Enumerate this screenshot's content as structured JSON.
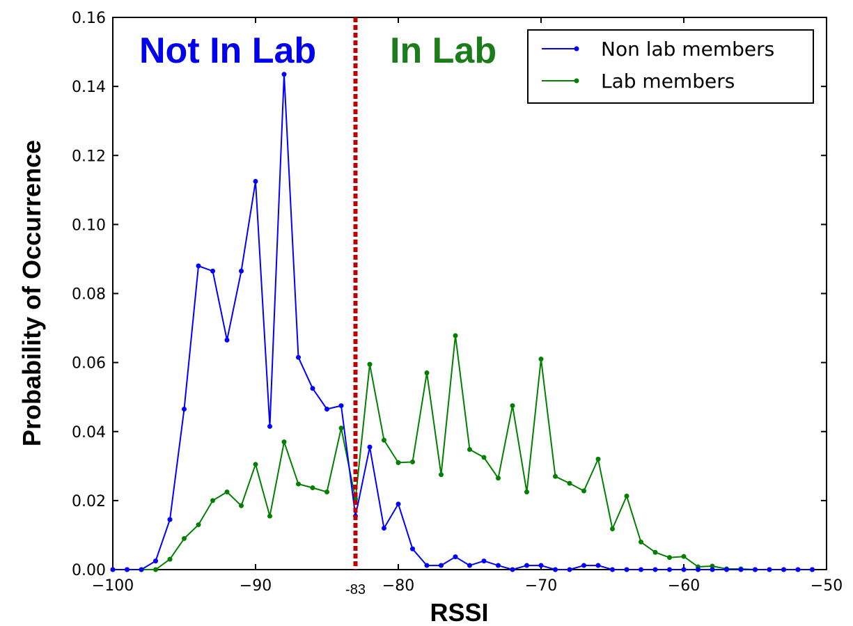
{
  "chart_data": {
    "type": "line",
    "xlabel": "RSSI",
    "ylabel": "Probability of Occurrence",
    "xlim": [
      -100,
      -50
    ],
    "ylim": [
      0,
      0.16
    ],
    "xticks": [
      -100,
      -90,
      -80,
      -70,
      -60,
      -50
    ],
    "xtick_labels": [
      "−100",
      "−90",
      "−80",
      "−70",
      "−60",
      "−50"
    ],
    "yticks": [
      0,
      0.02,
      0.04,
      0.06,
      0.08,
      0.1,
      0.12,
      0.14,
      0.16
    ],
    "ytick_labels": [
      "0.00",
      "0.02",
      "0.04",
      "0.06",
      "0.08",
      "0.10",
      "0.12",
      "0.14",
      "0.16"
    ],
    "grid": false,
    "legend_position": "top-right",
    "threshold": {
      "x": -83,
      "label": "-83",
      "color": "#c00000"
    },
    "annotations": [
      {
        "text": "Not In Lab",
        "color": "#0000ee"
      },
      {
        "text": "In Lab",
        "color": "#1a7d1a"
      }
    ],
    "x": [
      -100,
      -99,
      -98,
      -97,
      -96,
      -95,
      -94,
      -93,
      -92,
      -91,
      -90,
      -89,
      -88,
      -87,
      -86,
      -85,
      -84,
      -83,
      -82,
      -81,
      -80,
      -79,
      -78,
      -77,
      -76,
      -75,
      -74,
      -73,
      -72,
      -71,
      -70,
      -69,
      -68,
      -67,
      -66,
      -65,
      -64,
      -63,
      -62,
      -61,
      -60,
      -59,
      -58,
      -57,
      -56,
      -55,
      -54,
      -53,
      -52,
      -51
    ],
    "series": [
      {
        "name": "Non lab members",
        "color": "#0000ff",
        "values": [
          0,
          0,
          0,
          0.0025,
          0.0145,
          0.0465,
          0.088,
          0.0865,
          0.0665,
          0.0865,
          0.1125,
          0.0415,
          0.1435,
          0.0615,
          0.0525,
          0.0465,
          0.0475,
          0.0155,
          0.0355,
          0.012,
          0.019,
          0.006,
          0.0012,
          0.0012,
          0.0037,
          0.0012,
          0.0025,
          0.0012,
          0,
          0.0012,
          0.0012,
          0,
          0,
          0.0012,
          0.0012,
          0,
          0,
          0,
          0,
          0,
          0,
          0,
          0,
          0,
          0,
          0,
          0,
          0,
          0,
          0
        ]
      },
      {
        "name": "Lab members",
        "color": "#007f00",
        "values": [
          0,
          0,
          0,
          0,
          0.003,
          0.009,
          0.013,
          0.02,
          0.0225,
          0.0185,
          0.0305,
          0.0155,
          0.037,
          0.0248,
          0.0237,
          0.0225,
          0.041,
          0.0205,
          0.0595,
          0.0375,
          0.031,
          0.0312,
          0.057,
          0.0275,
          0.0678,
          0.0348,
          0.0325,
          0.0265,
          0.0475,
          0.0225,
          0.061,
          0.027,
          0.025,
          0.0228,
          0.032,
          0.0118,
          0.0213,
          0.008,
          0.005,
          0.0035,
          0.0038,
          0.0008,
          0.001,
          0.0002,
          0.0002,
          0,
          0,
          0,
          0,
          0
        ]
      }
    ]
  }
}
